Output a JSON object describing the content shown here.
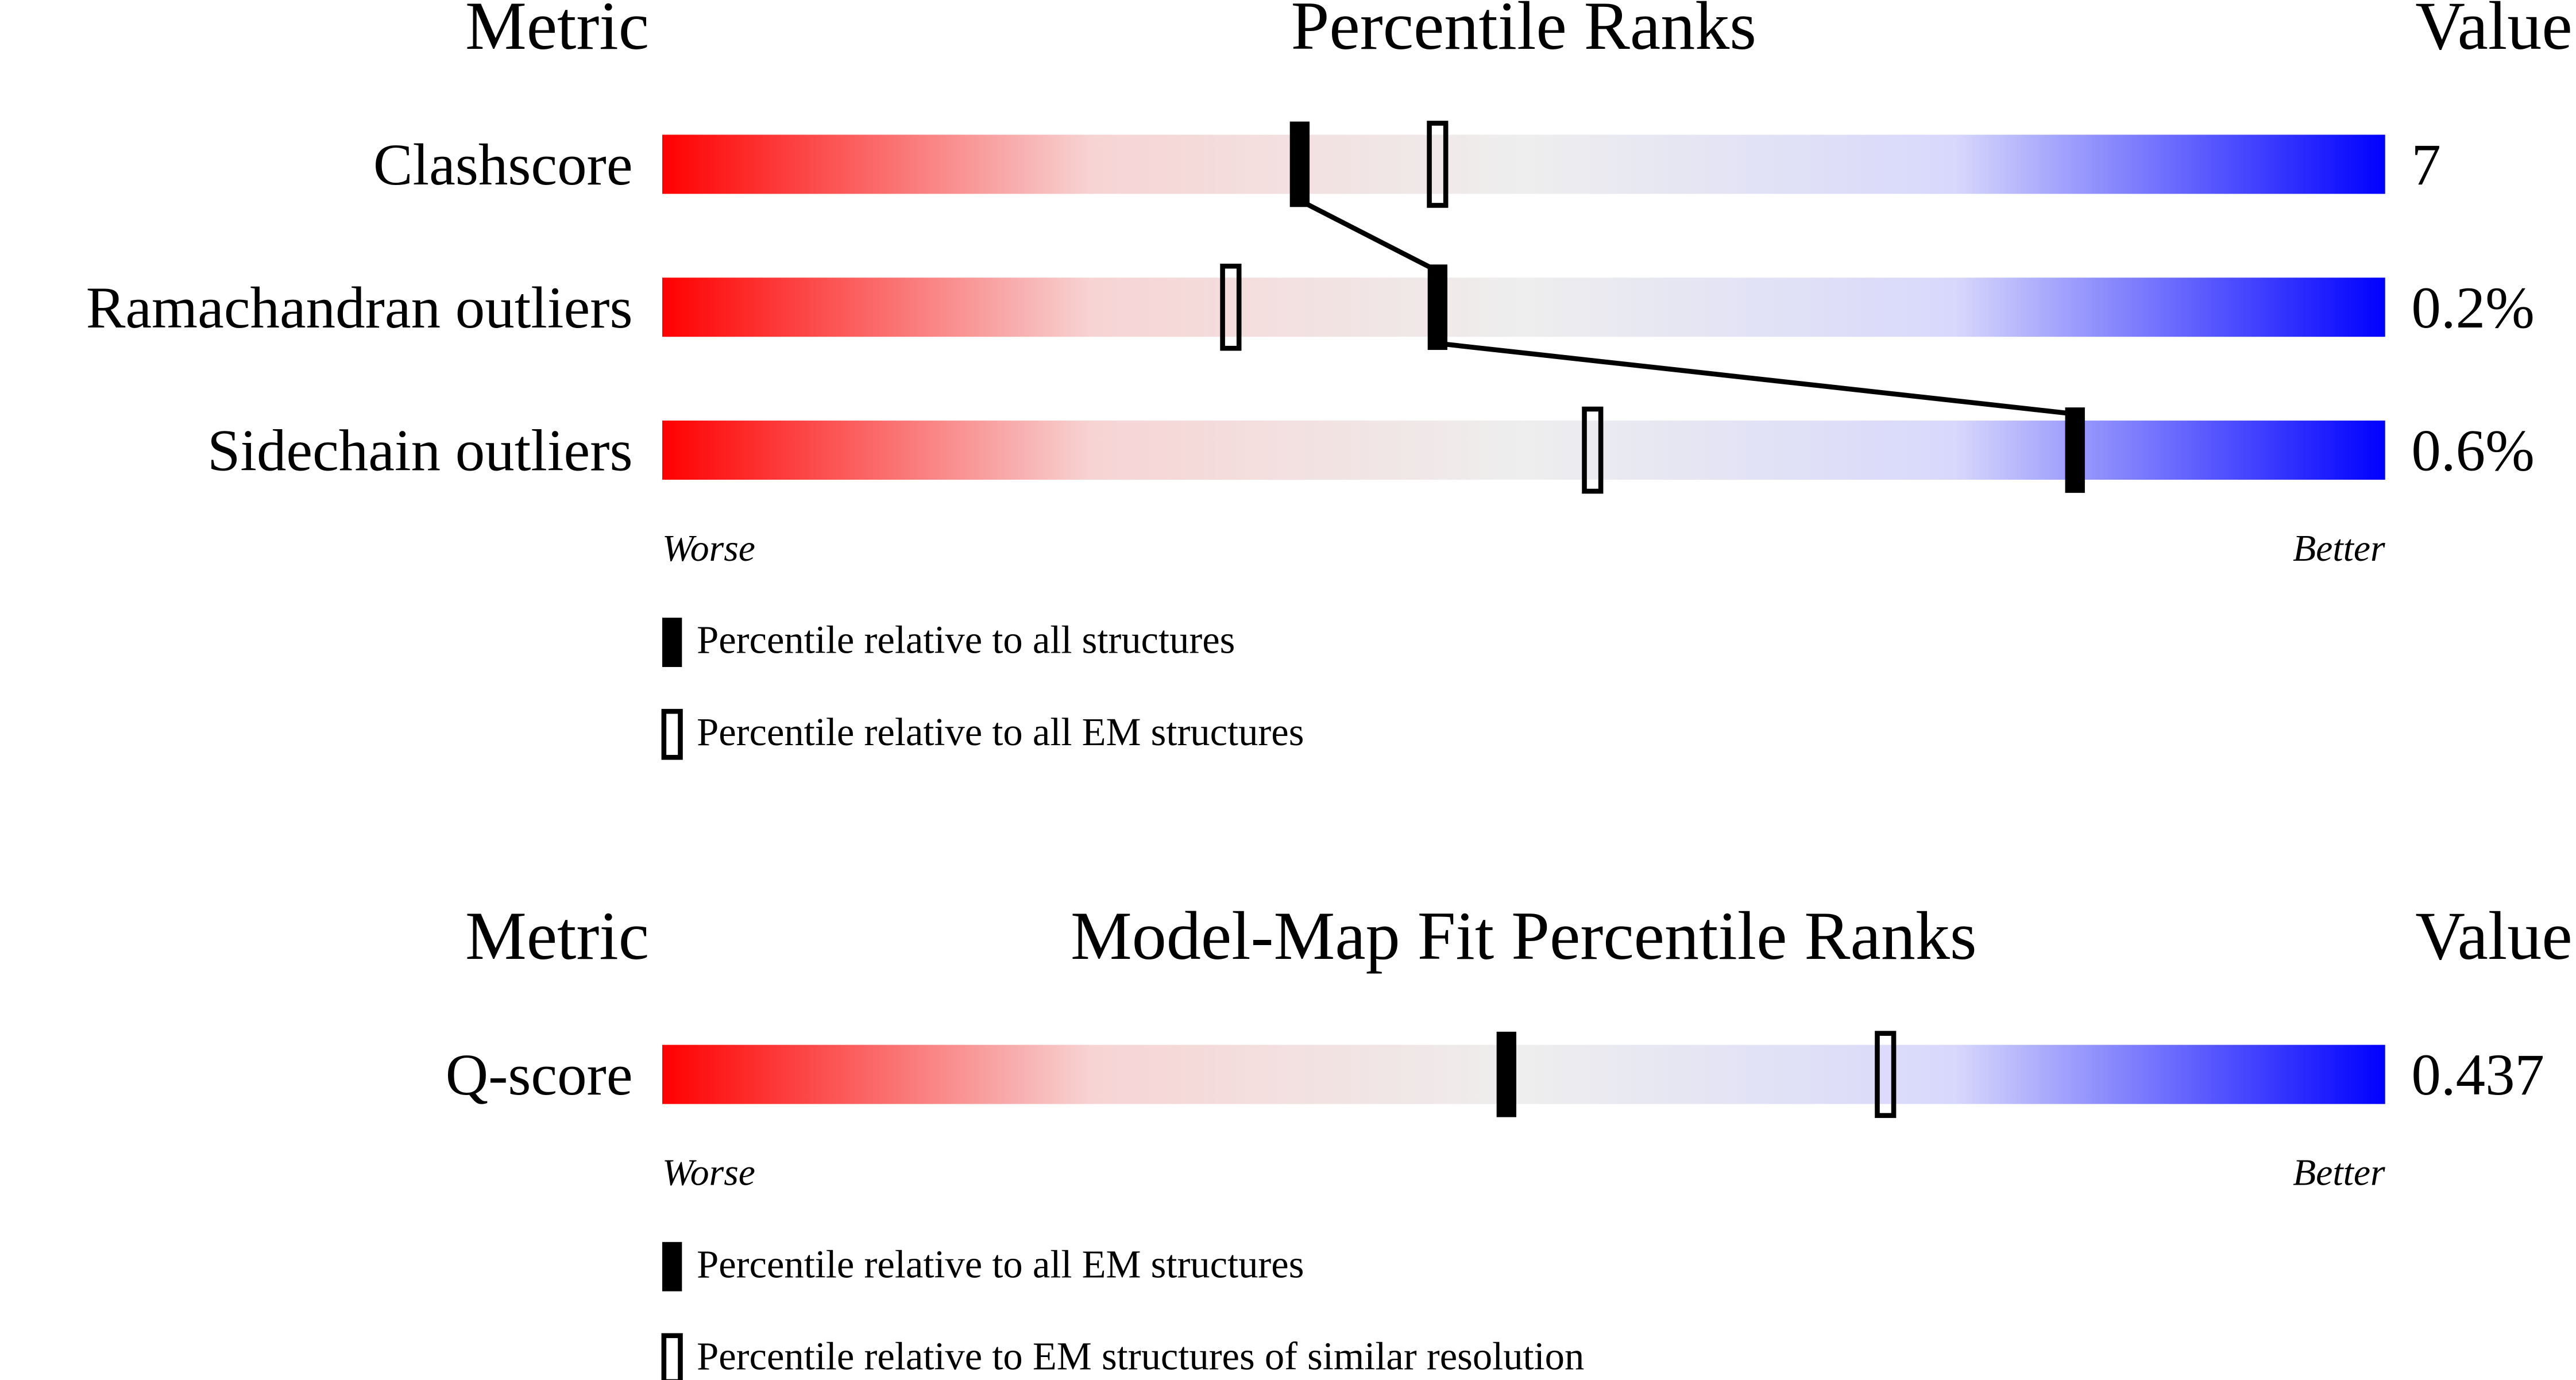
{
  "chart_data": [
    {
      "type": "percentile-slider",
      "title": "Percentile Ranks",
      "metric_header": "Metric",
      "value_header": "Value",
      "categories": [
        "Clashscore",
        "Ramachandran outliers",
        "Sidechain outliers"
      ],
      "metric_values": [
        "7",
        "0.2%",
        "0.6%"
      ],
      "series": [
        {
          "name": "Percentile relative to all structures",
          "style": "filled",
          "color": "#000000",
          "values": [
            37,
            45,
            82
          ]
        },
        {
          "name": "Percentile relative to all EM structures",
          "style": "outline",
          "color": "#000000",
          "values": [
            45,
            33,
            54
          ]
        }
      ],
      "xlim": [
        0,
        100
      ],
      "low_label": "Worse",
      "high_label": "Better",
      "gradient": [
        "#ff0000",
        "#f7d4d4",
        "#eeeeee",
        "#d8d8fc",
        "#0000ff"
      ]
    },
    {
      "type": "percentile-slider",
      "title": "Model-Map Fit Percentile Ranks",
      "metric_header": "Metric",
      "value_header": "Value",
      "categories": [
        "Q-score"
      ],
      "metric_values": [
        "0.437"
      ],
      "series": [
        {
          "name": "Percentile relative to all EM structures",
          "style": "filled",
          "color": "#000000",
          "values": [
            49
          ]
        },
        {
          "name": "Percentile relative to EM structures of similar resolution",
          "style": "outline",
          "color": "#000000",
          "values": [
            71
          ]
        }
      ],
      "xlim": [
        0,
        100
      ],
      "low_label": "Worse",
      "high_label": "Better",
      "gradient": [
        "#ff0000",
        "#f7d4d4",
        "#eeeeee",
        "#d8d8fc",
        "#0000ff"
      ]
    }
  ]
}
